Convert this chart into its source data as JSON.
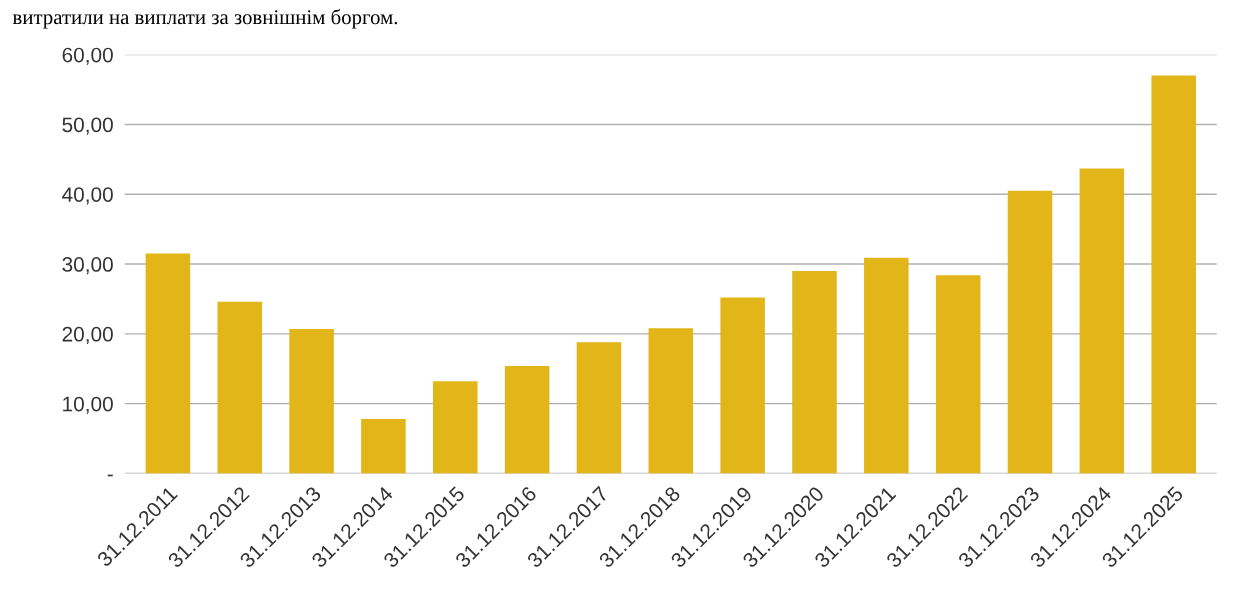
{
  "chart_data": {
    "type": "bar",
    "annotations": [
      "витратили на виплати за зовнішнім боргом."
    ],
    "categories": [
      "31.12.2011",
      "31.12.2012",
      "31.12.2013",
      "31.12.2014",
      "31.12.2015",
      "31.12.2016",
      "31.12.2017",
      "31.12.2018",
      "31.12.2019",
      "31.12.2020",
      "31.12.2021",
      "31.12.2022",
      "31.12.2023",
      "31.12.2024",
      "31.12.2025"
    ],
    "values": [
      31.5,
      24.6,
      20.7,
      7.8,
      13.2,
      15.4,
      18.8,
      20.8,
      25.2,
      29.0,
      30.9,
      28.4,
      40.5,
      43.7,
      57.0
    ],
    "color": "#e2b619",
    "ylim": [
      0,
      60
    ],
    "yticks": [
      {
        "value": 0,
        "label": "-"
      },
      {
        "value": 10,
        "label": "10,00"
      },
      {
        "value": 20,
        "label": "20,00"
      },
      {
        "value": 30,
        "label": "30,00"
      },
      {
        "value": 40,
        "label": "40,00"
      },
      {
        "value": 50,
        "label": "50,00"
      },
      {
        "value": 60,
        "label": "60,00"
      }
    ],
    "grid": "y"
  }
}
